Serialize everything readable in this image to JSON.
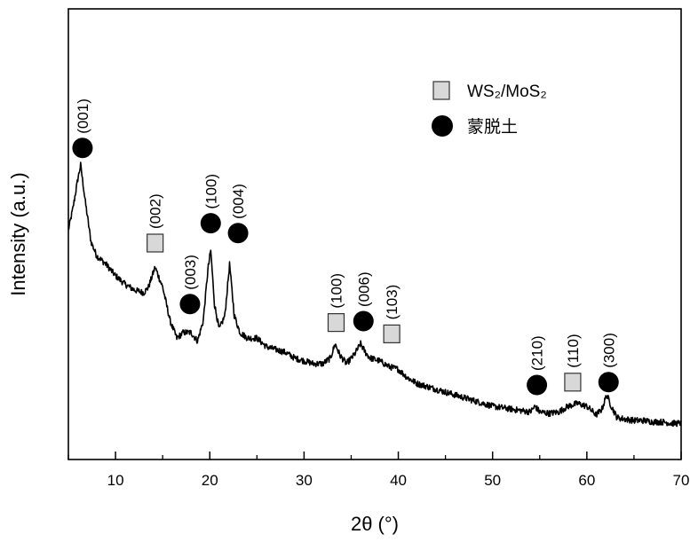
{
  "chart_data": {
    "type": "line",
    "xlabel": "2θ (°)",
    "ylabel": "Intensity (a.u.)",
    "xlim": [
      5,
      70
    ],
    "x_ticks": [
      "10",
      "20",
      "30",
      "40",
      "50",
      "60",
      "70"
    ],
    "y_ticks": [],
    "grid": false,
    "legend": {
      "placement": "top-right",
      "entries": [
        {
          "label": "WS₂/MoS₂",
          "marker": "square",
          "color": "#d8d8d8"
        },
        {
          "label": "蒙脱土",
          "marker": "circle",
          "color": "#000000"
        }
      ]
    },
    "series": [
      {
        "x": [
          5.0,
          5.5,
          6.0,
          6.3,
          6.8,
          7.4,
          8.0,
          9.0,
          10.0,
          11.0,
          12.0,
          13.0,
          13.5,
          14.2,
          15.0,
          15.8,
          16.5,
          17.2,
          18.0,
          18.7,
          19.3,
          19.8,
          20.1,
          20.5,
          21.0,
          21.6,
          22.1,
          22.6,
          23.2,
          24.0,
          25.0,
          26.0,
          27.0,
          28.0,
          29.0,
          30.0,
          31.0,
          32.0,
          32.8,
          33.3,
          33.8,
          34.5,
          35.3,
          36.0,
          36.5,
          37.0,
          38.0,
          39.0,
          40.0,
          41.0,
          42.0,
          43.0,
          44.0,
          45.0,
          46.0,
          47.0,
          48.0,
          49.0,
          50.0,
          51.0,
          52.0,
          53.0,
          54.0,
          54.5,
          55.0,
          56.0,
          57.0,
          58.0,
          59.0,
          60.0,
          61.0,
          61.6,
          62.1,
          62.6,
          63.2,
          64.0,
          65.0,
          66.0,
          67.0,
          68.0,
          69.0,
          70.0
        ],
        "y": [
          0.72,
          0.8,
          0.9,
          0.95,
          0.82,
          0.68,
          0.63,
          0.6,
          0.56,
          0.53,
          0.51,
          0.5,
          0.52,
          0.59,
          0.52,
          0.4,
          0.34,
          0.36,
          0.36,
          0.33,
          0.4,
          0.58,
          0.65,
          0.46,
          0.37,
          0.42,
          0.6,
          0.42,
          0.36,
          0.34,
          0.34,
          0.31,
          0.3,
          0.29,
          0.27,
          0.26,
          0.25,
          0.25,
          0.27,
          0.32,
          0.28,
          0.25,
          0.28,
          0.32,
          0.29,
          0.27,
          0.26,
          0.24,
          0.23,
          0.2,
          0.18,
          0.17,
          0.16,
          0.15,
          0.14,
          0.13,
          0.12,
          0.11,
          0.1,
          0.095,
          0.09,
          0.085,
          0.08,
          0.1,
          0.08,
          0.075,
          0.08,
          0.1,
          0.11,
          0.1,
          0.07,
          0.09,
          0.14,
          0.1,
          0.06,
          0.055,
          0.05,
          0.05,
          0.045,
          0.045,
          0.04,
          0.04
        ]
      }
    ],
    "annotations": [
      {
        "label": "(001)",
        "marker": "circle",
        "x": 6.5,
        "y": 1.01
      },
      {
        "label": "(002)",
        "marker": "square",
        "x": 14.2,
        "y": 0.675
      },
      {
        "label": "(003)",
        "marker": "circle",
        "x": 17.9,
        "y": 0.46
      },
      {
        "label": "(100)",
        "marker": "circle",
        "x": 20.1,
        "y": 0.745
      },
      {
        "label": "(004)",
        "marker": "circle",
        "x": 23.0,
        "y": 0.71
      },
      {
        "label": "(100)",
        "marker": "square",
        "x": 33.4,
        "y": 0.395
      },
      {
        "label": "(006)",
        "marker": "circle",
        "x": 36.3,
        "y": 0.4
      },
      {
        "label": "(103)",
        "marker": "square",
        "x": 39.3,
        "y": 0.355
      },
      {
        "label": "(210)",
        "marker": "circle",
        "x": 54.7,
        "y": 0.175
      },
      {
        "label": "(110)",
        "marker": "square",
        "x": 58.5,
        "y": 0.185
      },
      {
        "label": "(300)",
        "marker": "circle",
        "x": 62.3,
        "y": 0.185
      }
    ]
  }
}
